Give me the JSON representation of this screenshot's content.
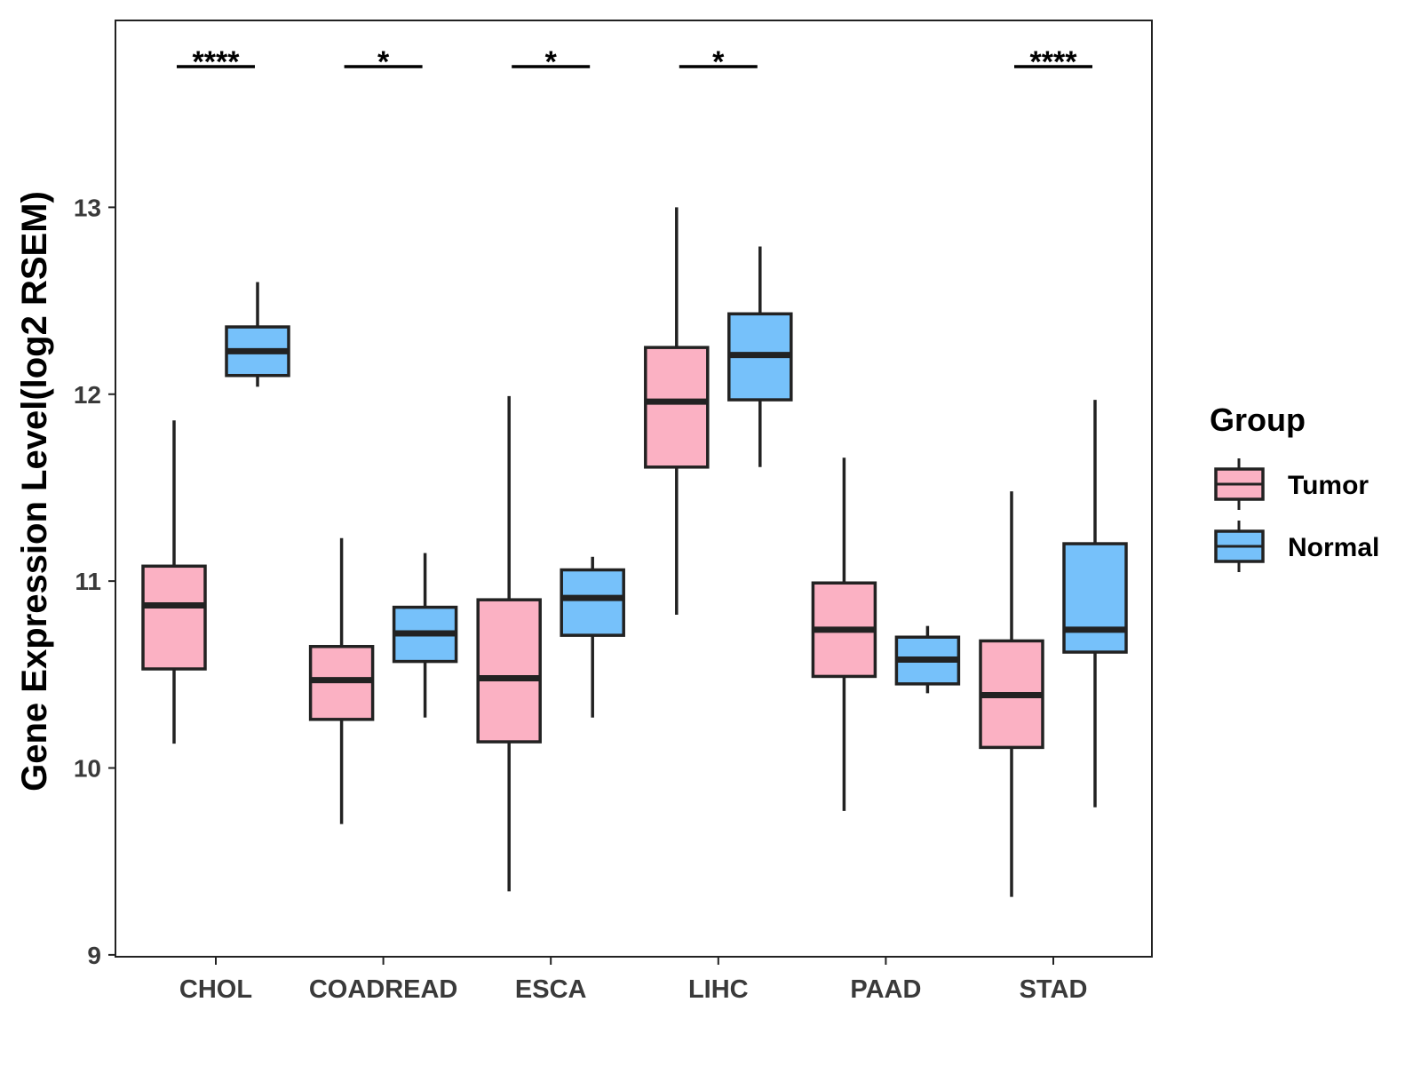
{
  "chart_data": {
    "type": "boxplot",
    "ylabel": "Gene Expression Level(log2 RSEM)",
    "xlabel": "",
    "ylim": [
      8.99,
      14.0
    ],
    "yticks": [
      "9",
      "10",
      "11",
      "12",
      "13"
    ],
    "categories": [
      "CHOL",
      "COADREAD",
      "ESCA",
      "LIHC",
      "PAAD",
      "STAD"
    ],
    "legend": {
      "title": "Group",
      "position": "right",
      "entries": [
        {
          "name": "Tumor",
          "color": "#FBB1C3"
        },
        {
          "name": "Normal",
          "color": "#76C1FA"
        }
      ]
    },
    "series": [
      {
        "name": "Tumor",
        "color": "#FBB1C3",
        "boxes": [
          {
            "category": "CHOL",
            "lower_whisker": 10.13,
            "q1": 10.53,
            "median": 10.87,
            "q3": 11.08,
            "upper_whisker": 11.86
          },
          {
            "category": "COADREAD",
            "lower_whisker": 9.7,
            "q1": 10.26,
            "median": 10.47,
            "q3": 10.65,
            "upper_whisker": 11.23
          },
          {
            "category": "ESCA",
            "lower_whisker": 9.34,
            "q1": 10.14,
            "median": 10.48,
            "q3": 10.9,
            "upper_whisker": 11.99
          },
          {
            "category": "LIHC",
            "lower_whisker": 10.82,
            "q1": 11.61,
            "median": 11.96,
            "q3": 12.25,
            "upper_whisker": 13.0
          },
          {
            "category": "PAAD",
            "lower_whisker": 9.77,
            "q1": 10.49,
            "median": 10.74,
            "q3": 10.99,
            "upper_whisker": 11.66
          },
          {
            "category": "STAD",
            "lower_whisker": 9.31,
            "q1": 10.11,
            "median": 10.39,
            "q3": 10.68,
            "upper_whisker": 11.48
          }
        ]
      },
      {
        "name": "Normal",
        "color": "#76C1FA",
        "boxes": [
          {
            "category": "CHOL",
            "lower_whisker": 12.04,
            "q1": 12.1,
            "median": 12.23,
            "q3": 12.36,
            "upper_whisker": 12.6
          },
          {
            "category": "COADREAD",
            "lower_whisker": 10.27,
            "q1": 10.57,
            "median": 10.72,
            "q3": 10.86,
            "upper_whisker": 11.15
          },
          {
            "category": "ESCA",
            "lower_whisker": 10.27,
            "q1": 10.71,
            "median": 10.91,
            "q3": 11.06,
            "upper_whisker": 11.13
          },
          {
            "category": "LIHC",
            "lower_whisker": 11.61,
            "q1": 11.97,
            "median": 12.21,
            "q3": 12.43,
            "upper_whisker": 12.79
          },
          {
            "category": "PAAD",
            "lower_whisker": 10.4,
            "q1": 10.45,
            "median": 10.58,
            "q3": 10.7,
            "upper_whisker": 10.76
          },
          {
            "category": "STAD",
            "lower_whisker": 9.79,
            "q1": 10.62,
            "median": 10.74,
            "q3": 11.2,
            "upper_whisker": 11.97
          }
        ]
      }
    ],
    "significance": [
      {
        "category": "CHOL",
        "label": "****"
      },
      {
        "category": "COADREAD",
        "label": "*"
      },
      {
        "category": "ESCA",
        "label": "*"
      },
      {
        "category": "LIHC",
        "label": "*"
      },
      {
        "category": "PAAD",
        "label": ""
      },
      {
        "category": "STAD",
        "label": "****"
      }
    ]
  }
}
